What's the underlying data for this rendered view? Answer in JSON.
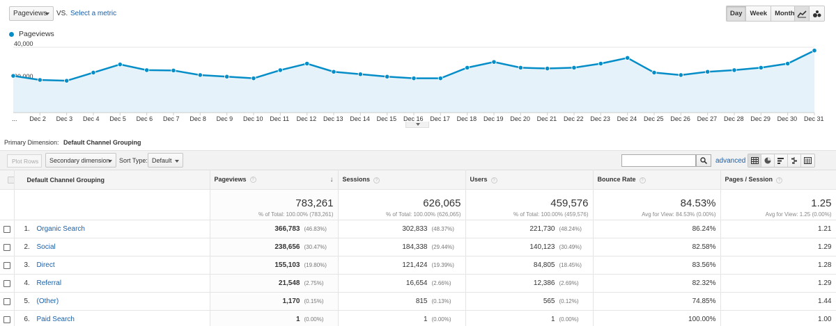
{
  "toolbar": {
    "metric_select": "Pageviews",
    "vs_label": "VS.",
    "select_metric": "Select a metric",
    "range_buttons": [
      "Day",
      "Week",
      "Month"
    ],
    "range_active": "Day"
  },
  "chart_data": {
    "type": "area",
    "series": [
      {
        "name": "Pageviews",
        "color": "#058dc7",
        "values": [
          22500,
          20000,
          19500,
          24500,
          29500,
          26000,
          25800,
          23000,
          22000,
          21000,
          26000,
          30000,
          25000,
          23500,
          22000,
          21000,
          21000,
          27500,
          31000,
          27500,
          27000,
          27500,
          30000,
          33500,
          24500,
          23000,
          25000,
          26000,
          27500,
          30000,
          38000
        ]
      }
    ],
    "x_labels": [
      "...",
      "Dec 2",
      "Dec 3",
      "Dec 4",
      "Dec 5",
      "Dec 6",
      "Dec 7",
      "Dec 8",
      "Dec 9",
      "Dec 10",
      "Dec 11",
      "Dec 12",
      "Dec 13",
      "Dec 14",
      "Dec 15",
      "Dec 16",
      "Dec 17",
      "Dec 18",
      "Dec 19",
      "Dec 20",
      "Dec 21",
      "Dec 22",
      "Dec 23",
      "Dec 24",
      "Dec 25",
      "Dec 26",
      "Dec 27",
      "Dec 28",
      "Dec 29",
      "Dec 30",
      "Dec 31"
    ],
    "y_ticks": [
      "20,000",
      "40,000"
    ],
    "ylim": [
      0,
      40000
    ],
    "legend_position": "top-left"
  },
  "primary_dimension": {
    "label": "Primary Dimension:",
    "value": "Default Channel Grouping"
  },
  "table_toolbar": {
    "plot_rows": "Plot Rows",
    "secondary_dimension": "Secondary dimension",
    "sort_type_label": "Sort Type:",
    "sort_type_value": "Default",
    "search_placeholder": "",
    "advanced": "advanced"
  },
  "table": {
    "headers": [
      "Default Channel Grouping",
      "Pageviews",
      "Sessions",
      "Users",
      "Bounce Rate",
      "Pages / Session"
    ],
    "totals": [
      {
        "value": "783,261",
        "sub": "% of Total: 100.00% (783,261)"
      },
      {
        "value": "626,065",
        "sub": "% of Total: 100.00% (626,065)"
      },
      {
        "value": "459,576",
        "sub": "% of Total: 100.00% (459,576)"
      },
      {
        "value": "84.53%",
        "sub": "Avg for View: 84.53% (0.00%)"
      },
      {
        "value": "1.25",
        "sub": "Avg for View: 1.25 (0.00%)"
      }
    ],
    "rows": [
      {
        "idx": "1.",
        "channel": "Organic Search",
        "pageviews": "366,783",
        "pageviews_pct": "(46.83%)",
        "sessions": "302,833",
        "sessions_pct": "(48.37%)",
        "users": "221,730",
        "users_pct": "(48.24%)",
        "bounce": "86.24%",
        "pps": "1.21"
      },
      {
        "idx": "2.",
        "channel": "Social",
        "pageviews": "238,656",
        "pageviews_pct": "(30.47%)",
        "sessions": "184,338",
        "sessions_pct": "(29.44%)",
        "users": "140,123",
        "users_pct": "(30.49%)",
        "bounce": "82.58%",
        "pps": "1.29"
      },
      {
        "idx": "3.",
        "channel": "Direct",
        "pageviews": "155,103",
        "pageviews_pct": "(19.80%)",
        "sessions": "121,424",
        "sessions_pct": "(19.39%)",
        "users": "84,805",
        "users_pct": "(18.45%)",
        "bounce": "83.56%",
        "pps": "1.28"
      },
      {
        "idx": "4.",
        "channel": "Referral",
        "pageviews": "21,548",
        "pageviews_pct": "(2.75%)",
        "sessions": "16,654",
        "sessions_pct": "(2.66%)",
        "users": "12,386",
        "users_pct": "(2.69%)",
        "bounce": "82.32%",
        "pps": "1.29"
      },
      {
        "idx": "5.",
        "channel": "(Other)",
        "pageviews": "1,170",
        "pageviews_pct": "(0.15%)",
        "sessions": "815",
        "sessions_pct": "(0.13%)",
        "users": "565",
        "users_pct": "(0.12%)",
        "bounce": "74.85%",
        "pps": "1.44"
      },
      {
        "idx": "6.",
        "channel": "Paid Search",
        "pageviews": "1",
        "pageviews_pct": "(0.00%)",
        "sessions": "1",
        "sessions_pct": "(0.00%)",
        "users": "1",
        "users_pct": "(0.00%)",
        "bounce": "100.00%",
        "pps": "1.00"
      }
    ]
  }
}
